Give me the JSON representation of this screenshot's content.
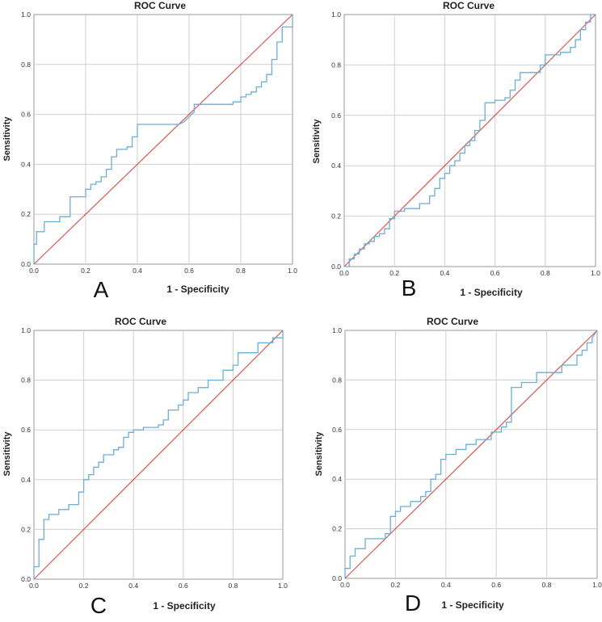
{
  "chart_data": [
    {
      "panel_letter": "A",
      "type": "line",
      "title": "ROC Curve",
      "xlabel": "1 - Specificity",
      "ylabel": "Sensitivity",
      "xlim": [
        0,
        1
      ],
      "ylim": [
        0,
        1
      ],
      "xticks": [
        "0.0",
        "0.2",
        "0.4",
        "0.6",
        "0.8",
        "1.0"
      ],
      "yticks": [
        "0.0",
        "0.2",
        "0.4",
        "0.6",
        "0.8",
        "1.0"
      ],
      "grid": true,
      "colors": {
        "roc": "#6baed6",
        "reference": "#d9534f",
        "grid": "#cfcfcf"
      },
      "reference_line": {
        "x": [
          0,
          1
        ],
        "y": [
          0,
          1
        ]
      },
      "series": [
        {
          "x": [
            0,
            0,
            0.01,
            0.01,
            0.04,
            0.04,
            0.1,
            0.1,
            0.14,
            0.14,
            0.2,
            0.2,
            0.22,
            0.22,
            0.24,
            0.24,
            0.26,
            0.26,
            0.28,
            0.28,
            0.3,
            0.3,
            0.32,
            0.32,
            0.36,
            0.36,
            0.38,
            0.38,
            0.4,
            0.4,
            0.56,
            0.58,
            0.6,
            0.62,
            0.62,
            0.77,
            0.77,
            0.8,
            0.8,
            0.82,
            0.82,
            0.84,
            0.84,
            0.86,
            0.86,
            0.88,
            0.88,
            0.9,
            0.9,
            0.92,
            0.92,
            0.94,
            0.94,
            0.96,
            0.96,
            1.0,
            1.0
          ],
          "y": [
            0,
            0.08,
            0.08,
            0.13,
            0.13,
            0.17,
            0.17,
            0.19,
            0.19,
            0.27,
            0.27,
            0.3,
            0.3,
            0.32,
            0.32,
            0.33,
            0.33,
            0.35,
            0.35,
            0.38,
            0.38,
            0.43,
            0.43,
            0.46,
            0.46,
            0.47,
            0.47,
            0.51,
            0.51,
            0.56,
            0.56,
            0.57,
            0.59,
            0.61,
            0.64,
            0.64,
            0.65,
            0.65,
            0.67,
            0.67,
            0.68,
            0.68,
            0.69,
            0.69,
            0.71,
            0.71,
            0.73,
            0.73,
            0.76,
            0.76,
            0.82,
            0.82,
            0.89,
            0.89,
            0.95,
            0.95,
            1.0
          ]
        }
      ]
    },
    {
      "panel_letter": "B",
      "type": "line",
      "title": "ROC Curve",
      "xlabel": "1 - Specificity",
      "ylabel": "Sensitivity",
      "xlim": [
        0,
        1
      ],
      "ylim": [
        0,
        1
      ],
      "xticks": [
        "0.0",
        "0.2",
        "0.4",
        "0.6",
        "0.8",
        "1.0"
      ],
      "yticks": [
        "0.0",
        "0.2",
        "0.4",
        "0.6",
        "0.8",
        "1.0"
      ],
      "grid": true,
      "colors": {
        "roc": "#6baed6",
        "reference": "#d9534f",
        "grid": "#cfcfcf"
      },
      "reference_line": {
        "x": [
          0,
          1
        ],
        "y": [
          0,
          1
        ]
      },
      "series": [
        {
          "x": [
            0,
            0.02,
            0.02,
            0.04,
            0.04,
            0.06,
            0.06,
            0.08,
            0.08,
            0.1,
            0.1,
            0.12,
            0.12,
            0.14,
            0.14,
            0.16,
            0.16,
            0.18,
            0.18,
            0.2,
            0.2,
            0.24,
            0.24,
            0.3,
            0.3,
            0.34,
            0.34,
            0.36,
            0.36,
            0.38,
            0.38,
            0.4,
            0.4,
            0.42,
            0.42,
            0.44,
            0.44,
            0.46,
            0.46,
            0.48,
            0.48,
            0.5,
            0.5,
            0.52,
            0.52,
            0.54,
            0.54,
            0.56,
            0.56,
            0.6,
            0.6,
            0.64,
            0.64,
            0.66,
            0.66,
            0.68,
            0.68,
            0.7,
            0.7,
            0.78,
            0.78,
            0.8,
            0.8,
            0.86,
            0.86,
            0.9,
            0.9,
            0.92,
            0.92,
            0.94,
            0.94,
            0.96,
            0.96,
            0.98,
            0.98,
            1.0
          ],
          "y": [
            0,
            0,
            0.03,
            0.03,
            0.05,
            0.05,
            0.07,
            0.07,
            0.09,
            0.09,
            0.1,
            0.1,
            0.12,
            0.12,
            0.13,
            0.13,
            0.15,
            0.15,
            0.19,
            0.19,
            0.22,
            0.22,
            0.23,
            0.23,
            0.25,
            0.25,
            0.28,
            0.28,
            0.31,
            0.31,
            0.35,
            0.35,
            0.37,
            0.37,
            0.4,
            0.4,
            0.42,
            0.42,
            0.45,
            0.45,
            0.48,
            0.48,
            0.5,
            0.5,
            0.54,
            0.54,
            0.58,
            0.58,
            0.65,
            0.65,
            0.66,
            0.66,
            0.67,
            0.67,
            0.7,
            0.7,
            0.74,
            0.74,
            0.77,
            0.77,
            0.8,
            0.8,
            0.84,
            0.84,
            0.85,
            0.85,
            0.87,
            0.87,
            0.9,
            0.9,
            0.94,
            0.94,
            0.97,
            0.97,
            1.0,
            1.0
          ]
        }
      ]
    },
    {
      "panel_letter": "C",
      "type": "line",
      "title": "ROC Curve",
      "xlabel": "1 - Specificity",
      "ylabel": "Sensitivity",
      "xlim": [
        0,
        1
      ],
      "ylim": [
        0,
        1
      ],
      "xticks": [
        "0.0",
        "0.2",
        "0.4",
        "0.6",
        "0.8",
        "1.0"
      ],
      "yticks": [
        "0.0",
        "0.2",
        "0.4",
        "0.6",
        "0.8",
        "1.0"
      ],
      "grid": true,
      "colors": {
        "roc": "#6baed6",
        "reference": "#d9534f",
        "grid": "#cfcfcf"
      },
      "reference_line": {
        "x": [
          0,
          1
        ],
        "y": [
          0,
          1
        ]
      },
      "series": [
        {
          "x": [
            0,
            0,
            0.02,
            0.02,
            0.04,
            0.04,
            0.06,
            0.06,
            0.1,
            0.1,
            0.14,
            0.14,
            0.18,
            0.18,
            0.2,
            0.2,
            0.22,
            0.22,
            0.24,
            0.24,
            0.26,
            0.26,
            0.28,
            0.28,
            0.32,
            0.32,
            0.34,
            0.34,
            0.36,
            0.36,
            0.38,
            0.38,
            0.4,
            0.4,
            0.44,
            0.44,
            0.5,
            0.5,
            0.52,
            0.52,
            0.54,
            0.54,
            0.58,
            0.58,
            0.6,
            0.6,
            0.62,
            0.62,
            0.66,
            0.66,
            0.7,
            0.7,
            0.76,
            0.76,
            0.8,
            0.8,
            0.82,
            0.82,
            0.9,
            0.9,
            0.96,
            0.96,
            1.0,
            1.0
          ],
          "y": [
            0,
            0.05,
            0.05,
            0.16,
            0.16,
            0.24,
            0.24,
            0.26,
            0.26,
            0.28,
            0.28,
            0.3,
            0.3,
            0.35,
            0.35,
            0.4,
            0.4,
            0.42,
            0.42,
            0.45,
            0.45,
            0.47,
            0.47,
            0.5,
            0.5,
            0.52,
            0.52,
            0.53,
            0.53,
            0.57,
            0.57,
            0.59,
            0.59,
            0.6,
            0.6,
            0.61,
            0.61,
            0.62,
            0.62,
            0.64,
            0.64,
            0.68,
            0.68,
            0.7,
            0.7,
            0.72,
            0.72,
            0.75,
            0.75,
            0.77,
            0.77,
            0.8,
            0.8,
            0.84,
            0.84,
            0.86,
            0.86,
            0.91,
            0.91,
            0.95,
            0.95,
            0.97,
            0.97,
            1.0
          ]
        }
      ]
    },
    {
      "panel_letter": "D",
      "type": "line",
      "title": "ROC Curve",
      "xlabel": "1 - Specificity",
      "ylabel": "Sensitivity",
      "xlim": [
        0,
        1
      ],
      "ylim": [
        0,
        1
      ],
      "xticks": [
        "0.0",
        "0.2",
        "0.4",
        "0.6",
        "0.8",
        "1.0"
      ],
      "yticks": [
        "0.0",
        "0.2",
        "0.4",
        "0.6",
        "0.8",
        "1.0"
      ],
      "grid": true,
      "colors": {
        "roc": "#6baed6",
        "reference": "#d9534f",
        "grid": "#cfcfcf"
      },
      "reference_line": {
        "x": [
          0,
          1
        ],
        "y": [
          0,
          1
        ]
      },
      "series": [
        {
          "x": [
            0,
            0,
            0.02,
            0.02,
            0.04,
            0.04,
            0.08,
            0.08,
            0.16,
            0.16,
            0.18,
            0.18,
            0.2,
            0.2,
            0.22,
            0.22,
            0.26,
            0.26,
            0.3,
            0.3,
            0.32,
            0.32,
            0.34,
            0.34,
            0.36,
            0.36,
            0.38,
            0.38,
            0.4,
            0.4,
            0.44,
            0.44,
            0.48,
            0.48,
            0.52,
            0.52,
            0.58,
            0.58,
            0.62,
            0.62,
            0.64,
            0.64,
            0.66,
            0.66,
            0.7,
            0.7,
            0.76,
            0.76,
            0.86,
            0.86,
            0.92,
            0.92,
            0.94,
            0.94,
            0.96,
            0.96,
            0.98,
            0.98,
            1.0
          ],
          "y": [
            0,
            0.04,
            0.04,
            0.09,
            0.09,
            0.12,
            0.12,
            0.16,
            0.16,
            0.18,
            0.18,
            0.25,
            0.25,
            0.27,
            0.27,
            0.29,
            0.29,
            0.31,
            0.31,
            0.33,
            0.33,
            0.35,
            0.35,
            0.4,
            0.4,
            0.42,
            0.42,
            0.48,
            0.48,
            0.5,
            0.5,
            0.52,
            0.52,
            0.54,
            0.54,
            0.56,
            0.56,
            0.59,
            0.59,
            0.61,
            0.61,
            0.63,
            0.63,
            0.77,
            0.77,
            0.79,
            0.79,
            0.83,
            0.83,
            0.86,
            0.86,
            0.9,
            0.9,
            0.92,
            0.92,
            0.95,
            0.95,
            0.97,
            1.0
          ]
        }
      ]
    }
  ]
}
